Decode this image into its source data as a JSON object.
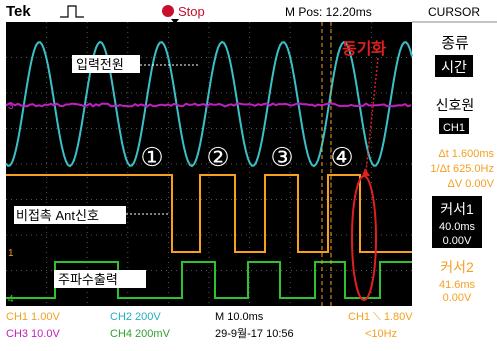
{
  "header": {
    "brand": "Tek",
    "status": "Stop",
    "position": "M Pos: 12.20ms",
    "menu": "CURSOR"
  },
  "menu": {
    "type_label": "종류",
    "type_value": "시간",
    "source_label": "신호원",
    "source_value": "CH1",
    "delta_t": "Δt 1.600ms",
    "inverse_delta_t": "1/Δt 625.0Hz",
    "delta_v": "ΔV 0.00V",
    "cursor1": {
      "label": "커서1",
      "time": "40.0ms",
      "volts": "0.00V"
    },
    "cursor2": {
      "label": "커서2",
      "time": "41.6ms",
      "volts": "0.00V"
    }
  },
  "annotations": {
    "input": "입력전원",
    "antenna": "비접촉 Ant신호",
    "output": "주파수출력",
    "sync": "동기화",
    "steps": [
      "①",
      "②",
      "③",
      "④"
    ]
  },
  "channel_markers": [
    "3",
    "1",
    "4"
  ],
  "footer": {
    "ch1": "CH1 1.00V",
    "ch2": "CH2 200V",
    "timebase": "M 10.0ms",
    "trigger": "CH1 ⟍ 1.80V",
    "ch3": "CH3 10.0V",
    "ch4": "CH4 200mV",
    "date": "29-9월-17 10:56",
    "freq": "<10Hz"
  }
}
